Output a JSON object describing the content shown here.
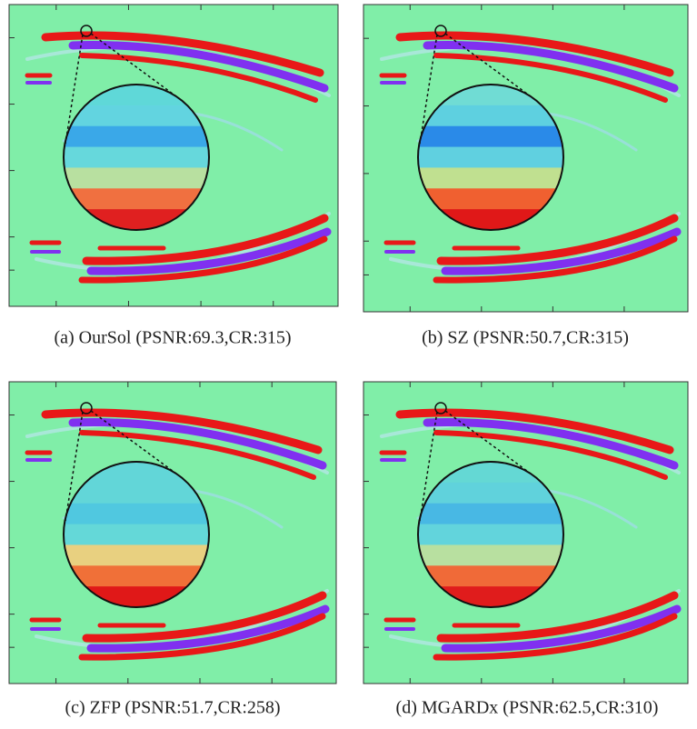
{
  "figure": {
    "subfigures": [
      {
        "caption": "(a) OurSol (PSNR:69.3,CR:315)"
      },
      {
        "caption": "(b) SZ (PSNR:50.7,CR:315)"
      },
      {
        "caption": "(c) ZFP (PSNR:51.7,CR:258)"
      },
      {
        "caption": "(d) MGARDx (PSNR:62.5,CR:310)"
      }
    ]
  }
}
